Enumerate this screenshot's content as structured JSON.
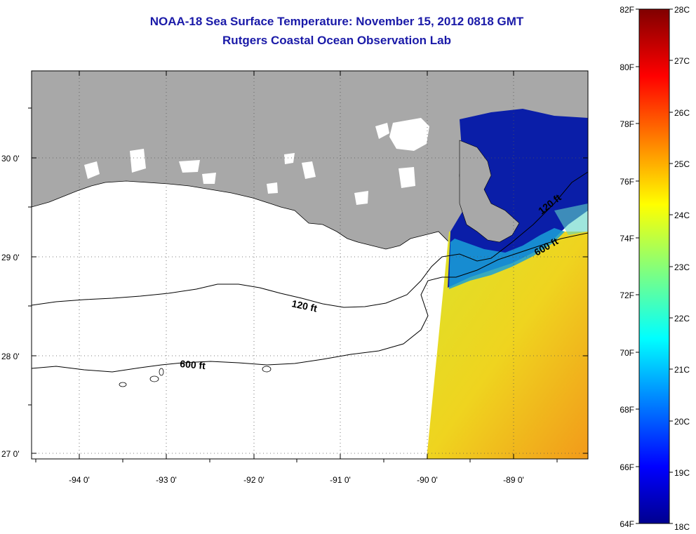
{
  "header": {
    "title": "NOAA-18 Sea Surface Temperature:  November 15, 2012 0818 GMT",
    "subtitle": "Rutgers Coastal Ocean Observation Lab"
  },
  "map": {
    "lat_labels": [
      "30 0'",
      "29 0'",
      "28 0'",
      "27 0'"
    ],
    "lon_labels": [
      "-94 0'",
      "-93 0'",
      "-92 0'",
      "-91 0'",
      "-90 0'",
      "-89 0'"
    ],
    "contour_labels": [
      "120 ft",
      "600 ft",
      "120 ft",
      "600 ft"
    ],
    "colors": {
      "land": "#a8a8a8",
      "ocean_no_data": "#ffffff",
      "cold": "#0a1ea8",
      "warm": "#e6d81e"
    }
  },
  "colorbar": {
    "f_labels": [
      "82F",
      "80F",
      "78F",
      "76F",
      "74F",
      "72F",
      "70F",
      "68F",
      "66F",
      "64F"
    ],
    "c_labels": [
      "28C",
      "27C",
      "26C",
      "25C",
      "24C",
      "23C",
      "22C",
      "21C",
      "20C",
      "19C",
      "18C"
    ]
  }
}
